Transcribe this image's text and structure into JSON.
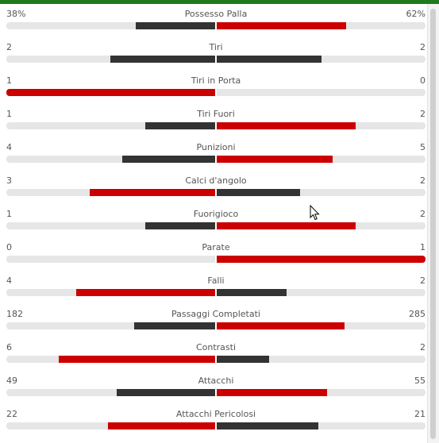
{
  "colors": {
    "top_bar": "#1f7a1f",
    "dark_bar": "#333333",
    "red_bar": "#cc0000",
    "track": "#e6e6e6"
  },
  "stats": [
    {
      "name": "Possesso Palla",
      "home": "38%",
      "away": "62%",
      "home_value": 38,
      "away_value": 62,
      "max": 100,
      "home_color": "#333333",
      "away_color": "#cc0000"
    },
    {
      "name": "Tiri",
      "home": "2",
      "away": "2",
      "home_value": 2,
      "away_value": 2,
      "max": 4,
      "home_color": "#333333",
      "away_color": "#333333"
    },
    {
      "name": "Tiri in Porta",
      "home": "1",
      "away": "0",
      "home_value": 1,
      "away_value": 0,
      "max": 1,
      "home_color": "#cc0000",
      "away_color": "#333333"
    },
    {
      "name": "Tiri Fuori",
      "home": "1",
      "away": "2",
      "home_value": 1,
      "away_value": 2,
      "max": 3,
      "home_color": "#333333",
      "away_color": "#cc0000"
    },
    {
      "name": "Punizioni",
      "home": "4",
      "away": "5",
      "home_value": 4,
      "away_value": 5,
      "max": 9,
      "home_color": "#333333",
      "away_color": "#cc0000"
    },
    {
      "name": "Calci d'angolo",
      "home": "3",
      "away": "2",
      "home_value": 3,
      "away_value": 2,
      "max": 5,
      "home_color": "#cc0000",
      "away_color": "#333333"
    },
    {
      "name": "Fuorigioco",
      "home": "1",
      "away": "2",
      "home_value": 1,
      "away_value": 2,
      "max": 3,
      "home_color": "#333333",
      "away_color": "#cc0000"
    },
    {
      "name": "Parate",
      "home": "0",
      "away": "1",
      "home_value": 0,
      "away_value": 1,
      "max": 1,
      "home_color": "#333333",
      "away_color": "#cc0000"
    },
    {
      "name": "Falli",
      "home": "4",
      "away": "2",
      "home_value": 4,
      "away_value": 2,
      "max": 6,
      "home_color": "#cc0000",
      "away_color": "#333333"
    },
    {
      "name": "Passaggi Completati",
      "home": "182",
      "away": "285",
      "home_value": 182,
      "away_value": 285,
      "max": 467,
      "home_color": "#333333",
      "away_color": "#cc0000"
    },
    {
      "name": "Contrasti",
      "home": "6",
      "away": "2",
      "home_value": 6,
      "away_value": 2,
      "max": 8,
      "home_color": "#cc0000",
      "away_color": "#333333"
    },
    {
      "name": "Attacchi",
      "home": "49",
      "away": "55",
      "home_value": 49,
      "away_value": 55,
      "max": 104,
      "home_color": "#333333",
      "away_color": "#cc0000"
    },
    {
      "name": "Attacchi Pericolosi",
      "home": "22",
      "away": "21",
      "home_value": 22,
      "away_value": 21,
      "max": 43,
      "home_color": "#cc0000",
      "away_color": "#333333"
    }
  ]
}
